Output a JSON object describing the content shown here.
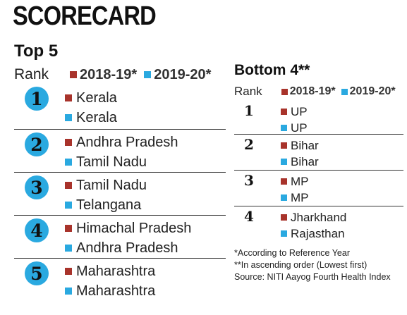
{
  "title": "SCORECARD",
  "legend": {
    "rank": "Rank",
    "y1": "2018-19*",
    "y2": "2019-20*"
  },
  "colors": {
    "y1": "#a8332b",
    "y2": "#2aa9e0"
  },
  "top5": {
    "heading": "Top 5",
    "rows": [
      {
        "rank": "1",
        "y1": "Kerala",
        "y2": "Kerala"
      },
      {
        "rank": "2",
        "y1": "Andhra Pradesh",
        "y2": "Tamil Nadu"
      },
      {
        "rank": "3",
        "y1": "Tamil Nadu",
        "y2": "Telangana"
      },
      {
        "rank": "4",
        "y1": "Himachal Pradesh",
        "y2": "Andhra Pradesh"
      },
      {
        "rank": "5",
        "y1": "Maharashtra",
        "y2": "Maharashtra"
      }
    ]
  },
  "bottom4": {
    "heading": "Bottom 4**",
    "rows": [
      {
        "rank": "1",
        "y1": "UP",
        "y2": "UP"
      },
      {
        "rank": "2",
        "y1": "Bihar",
        "y2": "Bihar"
      },
      {
        "rank": "3",
        "y1": "MP",
        "y2": "MP"
      },
      {
        "rank": "4",
        "y1": "Jharkhand",
        "y2": "Rajasthan"
      }
    ]
  },
  "notes": [
    "*According to Reference Year",
    "**In ascending order (Lowest first)",
    "Source: NITI Aayog Fourth Health Index"
  ]
}
